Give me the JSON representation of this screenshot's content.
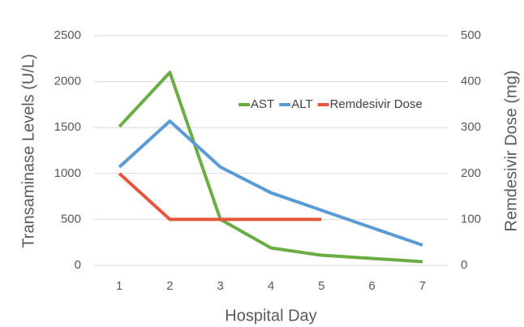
{
  "chart_data": {
    "type": "line",
    "xlabel": "Hospital Day",
    "ylabel": "Transaminase Levels (U/L)",
    "y2label": "Remdesivir Dose (mg)",
    "categories": [
      "1",
      "2",
      "3",
      "4",
      "5",
      "6",
      "7"
    ],
    "series": [
      {
        "name": "AST",
        "color": "#6aad45",
        "values": [
          1510,
          2100,
          500,
          190,
          110,
          75,
          40
        ]
      },
      {
        "name": "ALT",
        "color": "#5b9bd5",
        "values": [
          1070,
          1570,
          1070,
          790,
          600,
          410,
          220
        ]
      },
      {
        "name": "Remdesivir Dose",
        "color": "#e8553a",
        "axis": "y2",
        "values": [
          200,
          100,
          100,
          100,
          100,
          null,
          null
        ]
      }
    ],
    "ylim": [
      0,
      2500
    ],
    "yticks": [
      0,
      500,
      1000,
      1500,
      2000,
      2500
    ],
    "y2lim": [
      0,
      500
    ],
    "y2ticks": [
      0,
      100,
      200,
      300,
      400,
      500
    ],
    "grid": true,
    "legend": "upper right"
  }
}
